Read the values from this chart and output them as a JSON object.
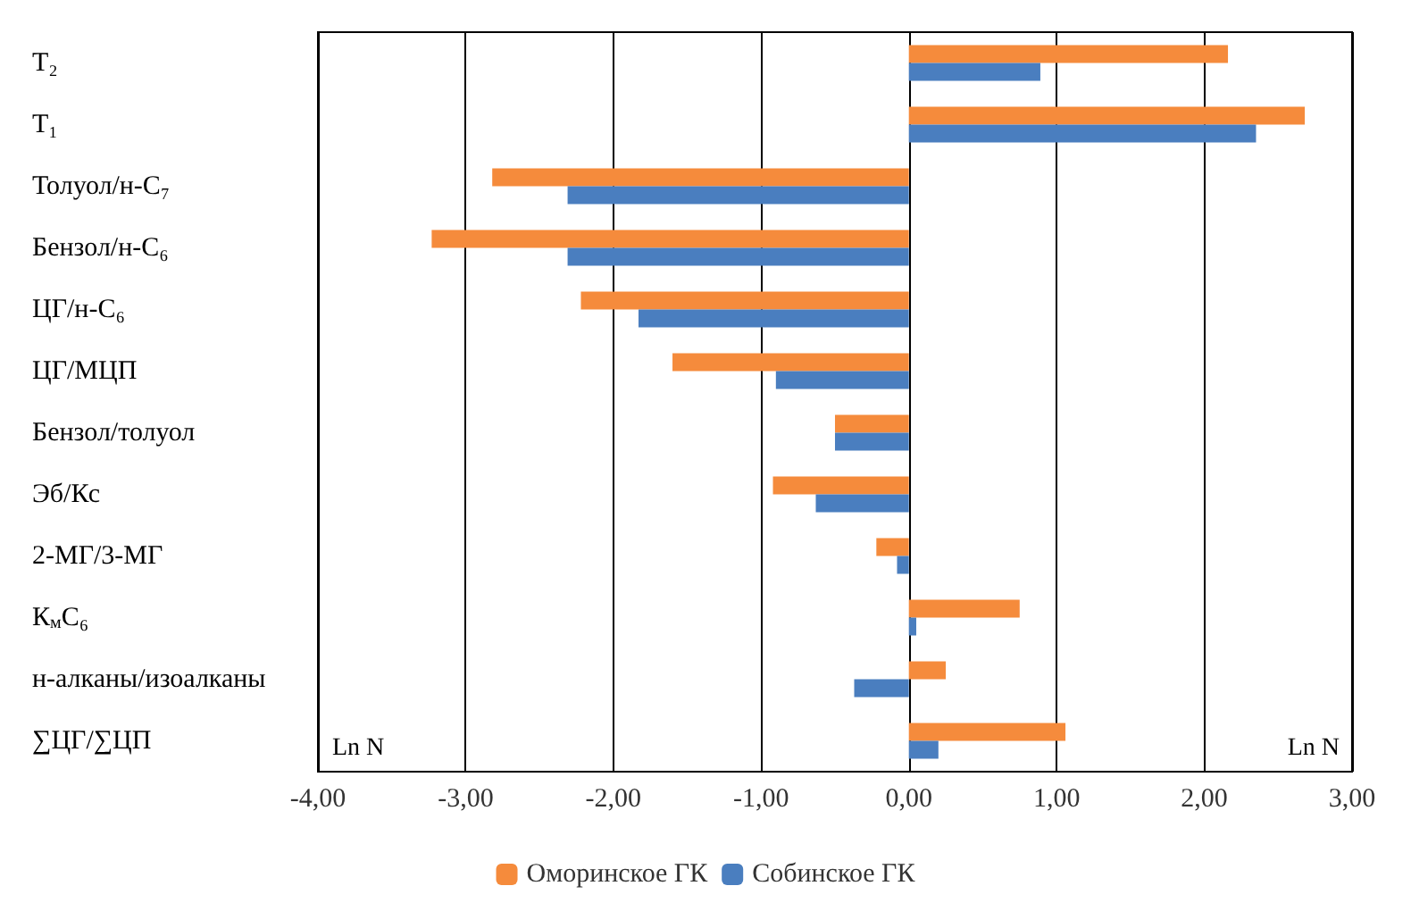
{
  "chart_data": {
    "type": "bar",
    "orientation": "horizontal",
    "categories": [
      "T₂",
      "T₁",
      "Толуол/н-C₇",
      "Бензол/н-C₆",
      "ЦГ/н-C₆",
      "ЦГ/МЦП",
      "Бензол/толуол",
      "Эб/Кс",
      "2-МГ/3-МГ",
      "К$_{м}$C₆",
      "н-алканы/изоалканы",
      "∑ЦГ/∑ЦП"
    ],
    "series": [
      {
        "name": "Оморинское ГК",
        "color": "#f58b3c",
        "values": [
          2.16,
          2.68,
          -2.82,
          -3.23,
          -2.22,
          -1.6,
          -0.5,
          -0.92,
          -0.22,
          0.75,
          0.25,
          1.06
        ]
      },
      {
        "name": "Собинское ГК",
        "color": "#4a7ebf",
        "values": [
          0.89,
          2.35,
          -2.31,
          -2.31,
          -1.83,
          -0.9,
          -0.5,
          -0.63,
          -0.08,
          0.05,
          -0.37,
          0.2
        ]
      }
    ],
    "xlim": [
      -4,
      3
    ],
    "xticks": [
      {
        "value": -4,
        "label": "-4,00"
      },
      {
        "value": -3,
        "label": "-3,00"
      },
      {
        "value": -2,
        "label": "-2,00"
      },
      {
        "value": -1,
        "label": "-1,00"
      },
      {
        "value": 0,
        "label": "0,00"
      },
      {
        "value": 1,
        "label": "1,00"
      },
      {
        "value": 2,
        "label": "2,00"
      },
      {
        "value": 3,
        "label": "3,00"
      }
    ],
    "grid": "x",
    "legend": "bottom",
    "annotations": [
      "Ln N",
      "Ln N"
    ]
  }
}
